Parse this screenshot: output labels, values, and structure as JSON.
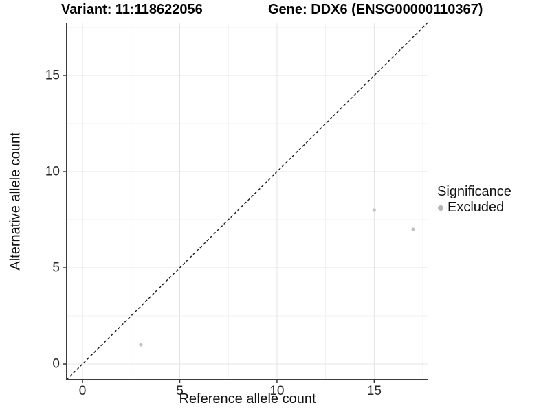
{
  "titles": {
    "left": "Variant: 11:118622056",
    "right": "Gene: DDX6 (ENSG00000110367)"
  },
  "chart_data": {
    "type": "scatter",
    "title_variant": "Variant: 11:118622056",
    "title_gene": "Gene: DDX6 (ENSG00000110367)",
    "xlabel": "Reference allele count",
    "ylabel": "Alternative allele count",
    "xlim": [
      -0.85,
      17.78
    ],
    "ylim": [
      -0.82,
      17.75
    ],
    "x_ticks": [
      0,
      5,
      10,
      15
    ],
    "y_ticks": [
      0,
      5,
      10,
      15
    ],
    "x_minor_ticks": [
      2.5,
      7.5,
      12.5,
      17.5
    ],
    "y_minor_ticks": [
      2.5,
      7.5,
      12.5,
      17.5
    ],
    "grid": {
      "major_color": "#e4e4e4",
      "minor_color": "#f1f1f1",
      "show": true
    },
    "axis_line_color": "#3d3d3d",
    "tick_label_color": "#262626",
    "series": [
      {
        "name": "Excluded",
        "color": "#c3c3c3",
        "point_radius": 2.6,
        "points": [
          {
            "x": 3,
            "y": 1
          },
          {
            "x": 15,
            "y": 8
          },
          {
            "x": 17,
            "y": 7
          }
        ]
      }
    ],
    "reference_line": {
      "type": "identity",
      "style": "dashed",
      "color": "#1a1a1a"
    },
    "legend": {
      "position": "right",
      "title": "Significance",
      "items": [
        {
          "label": "Excluded",
          "color": "#b5b5b5"
        }
      ]
    }
  }
}
